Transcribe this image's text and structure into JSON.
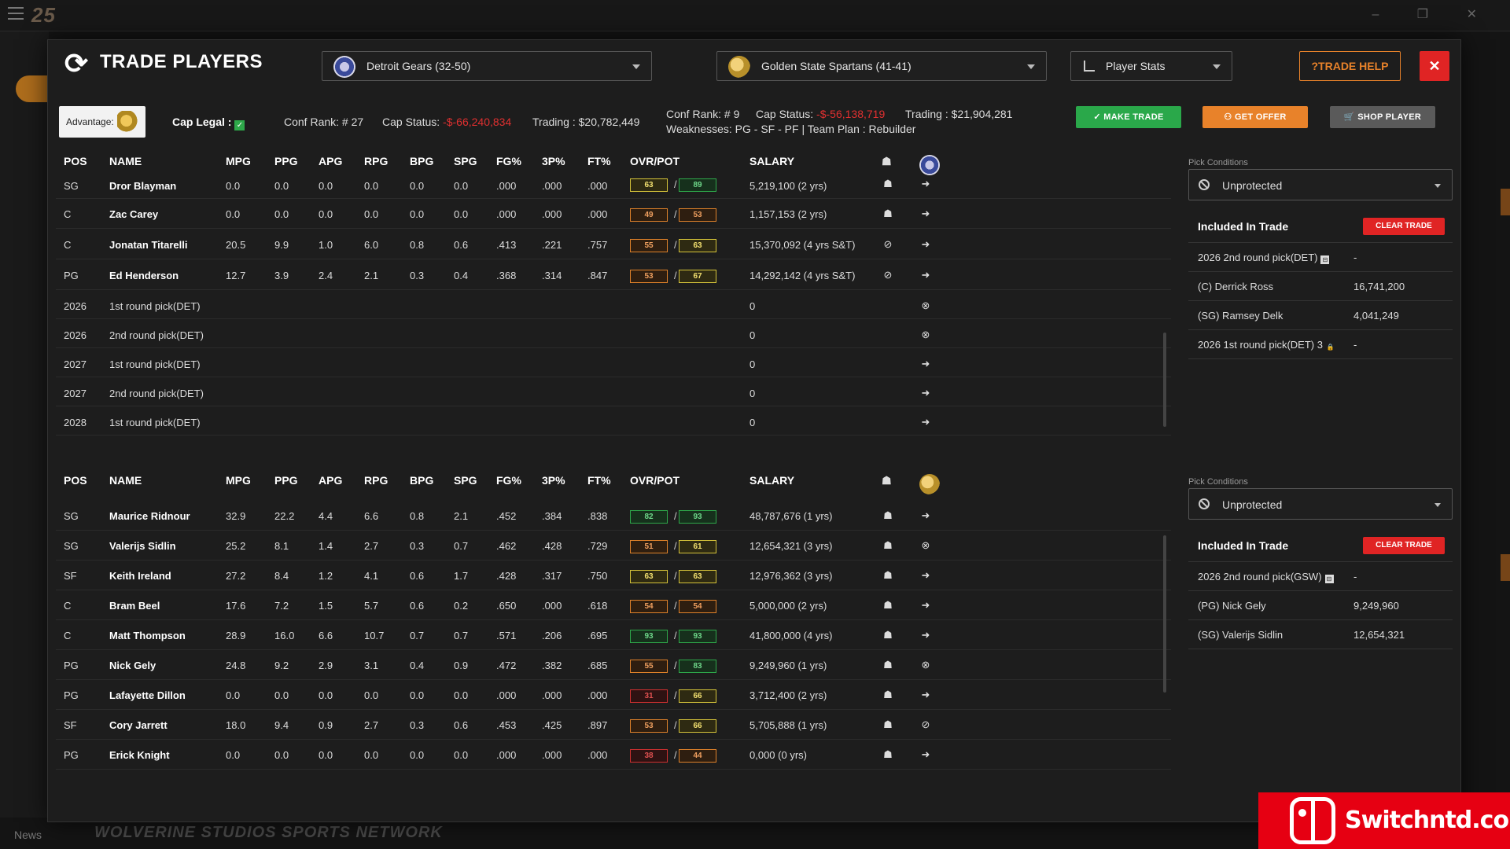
{
  "background": {
    "logo": "25",
    "news": "News",
    "brand": "WOLVERINE STUDIOS SPORTS NETWORK"
  },
  "watermark": {
    "text": "Switchntd.com"
  },
  "modal": {
    "title": "TRADE PLAYERS",
    "team_left": "Detroit Gears (32-50)",
    "team_right": "Golden State Spartans (41-41)",
    "stats_mode": "Player Stats",
    "help_label": "?TRADE HELP",
    "close_label": "✕"
  },
  "left_info": {
    "advantage_label": "Advantage:",
    "cap_legal_label": "Cap Legal :",
    "conf_rank_label": "Conf Rank: # 27",
    "cap_status_label": "Cap Status:",
    "cap_status_value": "-$-66,240,834",
    "trading_label": "Trading : $20,782,449"
  },
  "right_info": {
    "conf_rank_label": "Conf Rank: # 9",
    "cap_status_label": "Cap Status:",
    "cap_status_value": "-$-56,138,719",
    "trading_label": "Trading : $21,904,281",
    "weaknesses_line": "Weaknesses: PG - SF - PF | Team Plan : Rebuilder"
  },
  "actions": {
    "make_trade": "MAKE TRADE",
    "get_offer": "GET OFFER",
    "shop_player": "SHOP PLAYER"
  },
  "columns": [
    "POS",
    "NAME",
    "MPG",
    "PPG",
    "APG",
    "RPG",
    "BPG",
    "SPG",
    "FG%",
    "3P%",
    "FT%",
    "OVR/POT",
    "SALARY"
  ],
  "top_table": {
    "rows": [
      {
        "pos": "SG",
        "name": "Dror Blayman",
        "mpg": "0.0",
        "ppg": "0.0",
        "apg": "0.0",
        "rpg": "0.0",
        "bpg": "0.0",
        "spg": "0.0",
        "fg": ".000",
        "tp": ".000",
        "ft": ".000",
        "ovr": "63",
        "pot": "89",
        "salary": "5,219,100 (2 yrs)"
      },
      {
        "pos": "C",
        "name": "Zac Carey",
        "mpg": "0.0",
        "ppg": "0.0",
        "apg": "0.0",
        "rpg": "0.0",
        "bpg": "0.0",
        "spg": "0.0",
        "fg": ".000",
        "tp": ".000",
        "ft": ".000",
        "ovr": "49",
        "pot": "53",
        "salary": "1,157,153 (2 yrs)"
      },
      {
        "pos": "C",
        "name": "Jonatan Titarelli",
        "mpg": "20.5",
        "ppg": "9.9",
        "apg": "1.0",
        "rpg": "6.0",
        "bpg": "0.8",
        "spg": "0.6",
        "fg": ".413",
        "tp": ".221",
        "ft": ".757",
        "ovr": "55",
        "pot": "63",
        "salary": "15,370,092 (4 yrs S&T)"
      },
      {
        "pos": "PG",
        "name": "Ed Henderson",
        "mpg": "12.7",
        "ppg": "3.9",
        "apg": "2.4",
        "rpg": "2.1",
        "bpg": "0.3",
        "spg": "0.4",
        "fg": ".368",
        "tp": ".314",
        "ft": ".847",
        "ovr": "53",
        "pot": "67",
        "salary": "14,292,142 (4 yrs S&T)"
      }
    ],
    "picks": [
      {
        "year": "2026",
        "name": "1st round pick(DET)",
        "salary": "0"
      },
      {
        "year": "2026",
        "name": "2nd round pick(DET)",
        "salary": "0"
      },
      {
        "year": "2027",
        "name": "1st round pick(DET)",
        "salary": "0"
      },
      {
        "year": "2027",
        "name": "2nd round pick(DET)",
        "salary": "0"
      },
      {
        "year": "2028",
        "name": "1st round pick(DET)",
        "salary": "0"
      }
    ]
  },
  "bottom_table": {
    "rows": [
      {
        "pos": "SG",
        "name": "Maurice Ridnour",
        "mpg": "32.9",
        "ppg": "22.2",
        "apg": "4.4",
        "rpg": "6.6",
        "bpg": "0.8",
        "spg": "2.1",
        "fg": ".452",
        "tp": ".384",
        "ft": ".838",
        "ovr": "82",
        "pot": "93",
        "salary": "48,787,676 (1 yrs)"
      },
      {
        "pos": "SG",
        "name": "Valerijs Sidlin",
        "mpg": "25.2",
        "ppg": "8.1",
        "apg": "1.4",
        "rpg": "2.7",
        "bpg": "0.3",
        "spg": "0.7",
        "fg": ".462",
        "tp": ".428",
        "ft": ".729",
        "ovr": "51",
        "pot": "61",
        "salary": "12,654,321 (3 yrs)"
      },
      {
        "pos": "SF",
        "name": "Keith Ireland",
        "mpg": "27.2",
        "ppg": "8.4",
        "apg": "1.2",
        "rpg": "4.1",
        "bpg": "0.6",
        "spg": "1.7",
        "fg": ".428",
        "tp": ".317",
        "ft": ".750",
        "ovr": "63",
        "pot": "63",
        "salary": "12,976,362 (3 yrs)"
      },
      {
        "pos": "C",
        "name": "Bram Beel",
        "mpg": "17.6",
        "ppg": "7.2",
        "apg": "1.5",
        "rpg": "5.7",
        "bpg": "0.6",
        "spg": "0.2",
        "fg": ".650",
        "tp": ".000",
        "ft": ".618",
        "ovr": "54",
        "pot": "54",
        "salary": "5,000,000 (2 yrs)"
      },
      {
        "pos": "C",
        "name": "Matt Thompson",
        "mpg": "28.9",
        "ppg": "16.0",
        "apg": "6.6",
        "rpg": "10.7",
        "bpg": "0.7",
        "spg": "0.7",
        "fg": ".571",
        "tp": ".206",
        "ft": ".695",
        "ovr": "93",
        "pot": "93",
        "salary": "41,800,000 (4 yrs)"
      },
      {
        "pos": "PG",
        "name": "Nick Gely",
        "mpg": "24.8",
        "ppg": "9.2",
        "apg": "2.9",
        "rpg": "3.1",
        "bpg": "0.4",
        "spg": "0.9",
        "fg": ".472",
        "tp": ".382",
        "ft": ".685",
        "ovr": "55",
        "pot": "83",
        "salary": "9,249,960 (1 yrs)"
      },
      {
        "pos": "PG",
        "name": "Lafayette Dillon",
        "mpg": "0.0",
        "ppg": "0.0",
        "apg": "0.0",
        "rpg": "0.0",
        "bpg": "0.0",
        "spg": "0.0",
        "fg": ".000",
        "tp": ".000",
        "ft": ".000",
        "ovr": "31",
        "pot": "66",
        "salary": "3,712,400 (2 yrs)"
      },
      {
        "pos": "SF",
        "name": "Cory Jarrett",
        "mpg": "18.0",
        "ppg": "9.4",
        "apg": "0.9",
        "rpg": "2.7",
        "bpg": "0.3",
        "spg": "0.6",
        "fg": ".453",
        "tp": ".425",
        "ft": ".897",
        "ovr": "53",
        "pot": "66",
        "salary": "5,705,888 (1 yrs)"
      },
      {
        "pos": "PG",
        "name": "Erick Knight",
        "mpg": "0.0",
        "ppg": "0.0",
        "apg": "0.0",
        "rpg": "0.0",
        "bpg": "0.0",
        "spg": "0.0",
        "fg": ".000",
        "tp": ".000",
        "ft": ".000",
        "ovr": "38",
        "pot": "44",
        "salary": "0,000 (0 yrs)"
      }
    ]
  },
  "top_panel": {
    "pick_conditions_label": "Pick Conditions",
    "pick_conditions_value": "Unprotected",
    "included_label": "Included In Trade",
    "clear_label": "CLEAR TRADE",
    "items": [
      {
        "label": "2026 2nd round pick(DET)",
        "value": "-",
        "mark": "⊟"
      },
      {
        "label": "(C) Derrick Ross",
        "value": "16,741,200",
        "mark": ""
      },
      {
        "label": "(SG) Ramsey Delk",
        "value": "4,041,249",
        "mark": ""
      },
      {
        "label": "2026 1st round pick(DET) 3",
        "value": "-",
        "mark": "🔒"
      }
    ]
  },
  "bottom_panel": {
    "pick_conditions_label": "Pick Conditions",
    "pick_conditions_value": "Unprotected",
    "included_label": "Included In Trade",
    "clear_label": "CLEAR TRADE",
    "items": [
      {
        "label": "2026 2nd round pick(GSW)",
        "value": "-",
        "mark": "⊟"
      },
      {
        "label": "(PG) Nick Gely",
        "value": "9,249,960",
        "mark": ""
      },
      {
        "label": "(SG) Valerijs Sidlin",
        "value": "12,654,321",
        "mark": ""
      }
    ]
  },
  "colors": {
    "make_trade": "#2aa84a",
    "get_offer": "#e8822a",
    "shop_player": "#5a5a5a",
    "danger": "#e02424"
  }
}
